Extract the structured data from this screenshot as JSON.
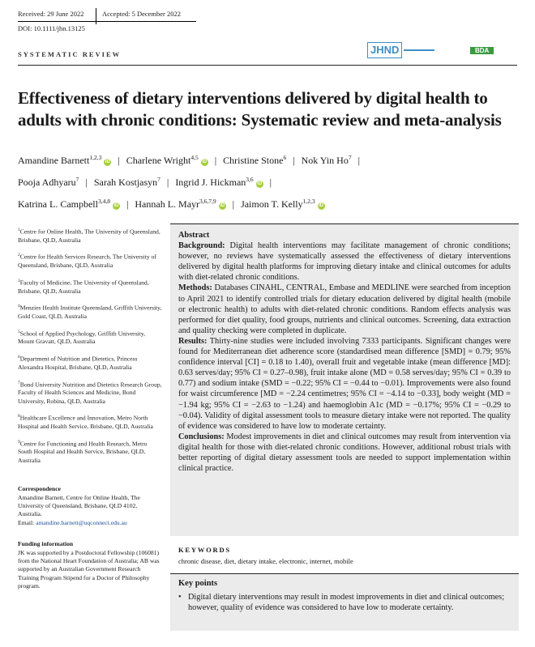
{
  "header": {
    "received": "Received: 29 June 2022",
    "accepted": "Accepted: 5 December 2022",
    "doi": "DOI: 10.1111/jhn.13125",
    "section": "SYSTEMATIC REVIEW",
    "logo_journal": "JHND",
    "logo_bda": "BDA"
  },
  "title": {
    "line1": "Effectiveness of dietary interventions delivered by digital health to",
    "line2": "adults with chronic conditions: Systematic review and meta-analysis"
  },
  "authors": [
    {
      "name": "Amandine Barnett",
      "sup": "1,2,3",
      "orcid": true
    },
    {
      "name": "Charlene Wright",
      "sup": "4,5",
      "orcid": true
    },
    {
      "name": "Christine Stone",
      "sup": "6",
      "orcid": false
    },
    {
      "name": "Nok Yin Ho",
      "sup": "7",
      "orcid": false
    },
    {
      "name": "Pooja Adhyaru",
      "sup": "7",
      "orcid": false
    },
    {
      "name": "Sarah Kostjasyn",
      "sup": "7",
      "orcid": false
    },
    {
      "name": "Ingrid J. Hickman",
      "sup": "3,6",
      "orcid": true
    },
    {
      "name": "Katrina L. Campbell",
      "sup": "3,4,8",
      "orcid": true
    },
    {
      "name": "Hannah L. Mayr",
      "sup": "3,6,7,9",
      "orcid": true
    },
    {
      "name": "Jaimon T. Kelly",
      "sup": "1,2,3",
      "orcid": true
    }
  ],
  "affiliations": [
    {
      "num": "1",
      "text": "Centre for Online Health, The University of Queensland, Brisbane, QLD, Australia"
    },
    {
      "num": "2",
      "text": "Centre for Health Services Research, The University of Queensland, Brisbane, QLD, Australia"
    },
    {
      "num": "3",
      "text": "Faculty of Medicine, The University of Queensland, Brisbane, QLD, Australia"
    },
    {
      "num": "4",
      "text": "Menzies Health Institute Queensland, Griffith University, Gold Coast, QLD, Australia"
    },
    {
      "num": "5",
      "text": "School of Applied Psychology, Griffith University, Mount Gravatt, QLD, Australia"
    },
    {
      "num": "6",
      "text": "Department of Nutrition and Dietetics, Princess Alexandra Hospital, Brisbane, QLD, Australia"
    },
    {
      "num": "7",
      "text": "Bond University Nutrition and Dietetics Research Group, Faculty of Health Sciences and Medicine, Bond University, Robina, QLD, Australia"
    },
    {
      "num": "8",
      "text": "Healthcare Excellence and Innovation, Metro North Hospital and Health Service, Brisbane, QLD, Australia"
    },
    {
      "num": "9",
      "text": "Centre for Functioning and Health Research, Metro South Hospital and Health Service, Brisbane, QLD, Australia"
    }
  ],
  "correspondence": {
    "heading": "Correspondence",
    "text": "Amandine Barnett, Centre for Online Health, The University of Queensland, Brisbane, QLD 4102, Australia.",
    "email_label": "Email: ",
    "email": "amandine.barnett@uqconnect.edu.au"
  },
  "funding": {
    "heading": "Funding information",
    "text": "JK was supported by a Postdoctoral Fellowship (106081) from the National Heart Foundation of Australia; AB was supported by an Australian Government Research Training Program Stipend for a Doctor of Philosophy program."
  },
  "abstract": {
    "heading": "Abstract",
    "background_label": "Background:",
    "background": "Digital health interventions may facilitate management of chronic conditions; however, no reviews have systematically assessed the effectiveness of dietary interventions delivered by digital health platforms for improving dietary intake and clinical outcomes for adults with diet-related chronic conditions.",
    "methods_label": "Methods:",
    "methods": "Databases CINAHL, CENTRAL, Embase and MEDLINE were searched from inception to April 2021 to identify controlled trials for dietary education delivered by digital health (mobile or electronic health) to adults with diet-related chronic conditions. Random effects analysis was performed for diet quality, food groups, nutrients and clinical outcomes. Screening, data extraction and quality checking were completed in duplicate.",
    "results_label": "Results:",
    "results": "Thirty-nine studies were included involving 7333 participants. Significant changes were found for Mediterranean diet adherence score (standardised mean difference [SMD] = 0.79; 95% confidence interval [CI] = 0.18 to 1.40), overall fruit and vegetable intake (mean difference [MD]: 0.63 serves/day; 95% CI = 0.27–0.98), fruit intake alone (MD = 0.58 serves/day; 95% CI = 0.39 to 0.77) and sodium intake (SMD = −0.22; 95% CI = −0.44 to −0.01). Improvements were also found for waist circumference [MD = −2.24 centimetres; 95% CI = −4.14 to −0.33], body weight (MD = −1.94 kg; 95% CI = −2.63 to −1.24) and haemoglobin A1c (MD = −0.17%; 95% CI = −0.29 to −0.04). Validity of digital assessment tools to measure dietary intake were not reported. The quality of evidence was considered to have low to moderate certainty.",
    "conclusions_label": "Conclusions:",
    "conclusions": "Modest improvements in diet and clinical outcomes may result from intervention via digital health for those with diet-related chronic conditions. However, additional robust trials with better reporting of digital dietary assessment tools are needed to support implementation within clinical practice."
  },
  "keywords": {
    "heading": "KEYWORDS",
    "text": "chronic disease, diet, dietary intake, electronic, internet, mobile"
  },
  "key_points": {
    "heading": "Key points",
    "items": [
      "Digital dietary interventions may result in modest improvements in diet and clinical outcomes; however, quality of evidence was considered to have low to moderate certainty."
    ]
  },
  "colors": {
    "abstract_bg": "#ebebeb",
    "link": "#1f4fa0",
    "orcid": "#a6ce39",
    "jhnd_logo": "#3b8fc4",
    "bda_logo": "#3a9a3e"
  }
}
